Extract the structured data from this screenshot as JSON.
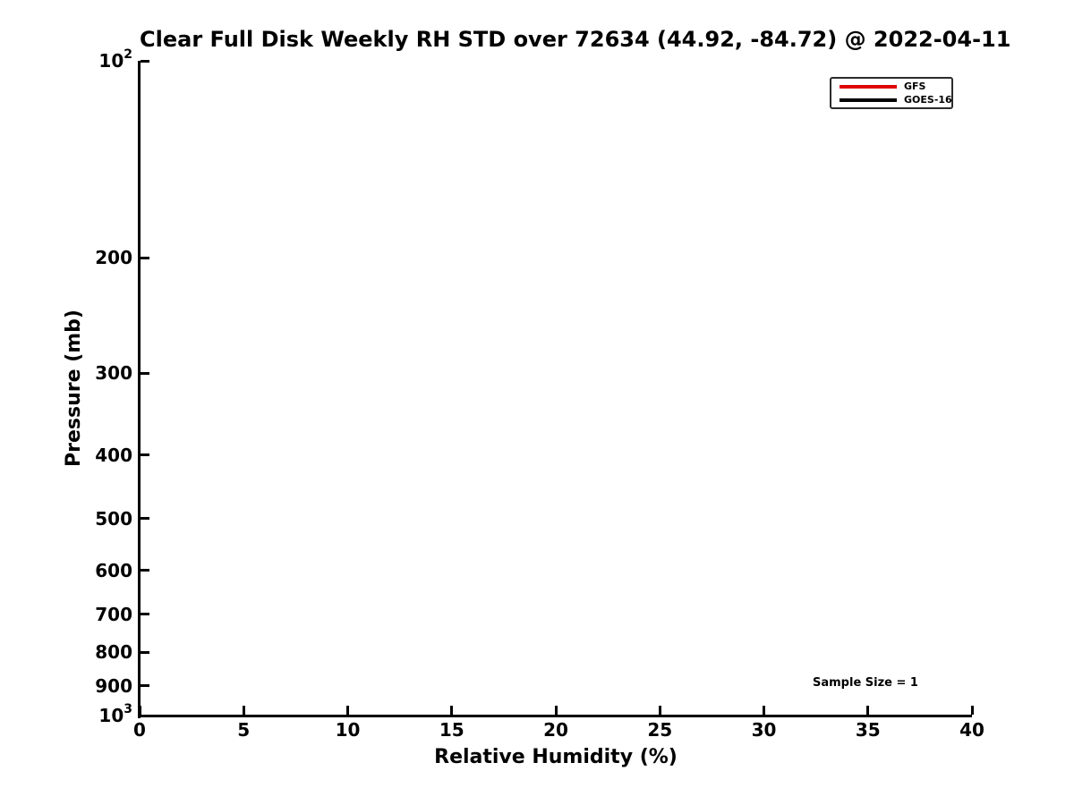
{
  "figure": {
    "background": "#ffffff",
    "text_color": "#000000"
  },
  "chart_data": {
    "type": "line",
    "title": "Clear Full Disk Weekly RH STD over 72634 (44.92, -84.72) @ 2022-04-11",
    "xlabel": "Relative Humidity (%)",
    "ylabel": "Pressure (mb)",
    "xlim": [
      0,
      40
    ],
    "ylim": [
      100,
      1000
    ],
    "yscale": "log",
    "y_inverted": true,
    "grid": false,
    "x_ticks": [
      {
        "value": 0,
        "label": "0"
      },
      {
        "value": 5,
        "label": "5"
      },
      {
        "value": 10,
        "label": "10"
      },
      {
        "value": 15,
        "label": "15"
      },
      {
        "value": 20,
        "label": "20"
      },
      {
        "value": 25,
        "label": "25"
      },
      {
        "value": 30,
        "label": "30"
      },
      {
        "value": 35,
        "label": "35"
      },
      {
        "value": 40,
        "label": "40"
      }
    ],
    "y_ticks": [
      {
        "value": 100,
        "label": "10",
        "exp": "2"
      },
      {
        "value": 200,
        "label": "200"
      },
      {
        "value": 300,
        "label": "300"
      },
      {
        "value": 400,
        "label": "400"
      },
      {
        "value": 500,
        "label": "500"
      },
      {
        "value": 600,
        "label": "600"
      },
      {
        "value": 700,
        "label": "700"
      },
      {
        "value": 800,
        "label": "800"
      },
      {
        "value": 900,
        "label": "900"
      },
      {
        "value": 1000,
        "label": "10",
        "exp": "3"
      }
    ],
    "series": [
      {
        "name": "GFS",
        "color": "#e00000",
        "x": [],
        "y": []
      },
      {
        "name": "GOES-16",
        "color": "#000000",
        "x": [],
        "y": []
      }
    ],
    "legend": {
      "position": "upper right",
      "entries": [
        {
          "label": "GFS",
          "color": "#e00000"
        },
        {
          "label": "GOES-16",
          "color": "#000000"
        }
      ]
    },
    "annotations": [
      {
        "text": "Sample Size = 1",
        "x": 35,
        "y": 900
      }
    ]
  }
}
